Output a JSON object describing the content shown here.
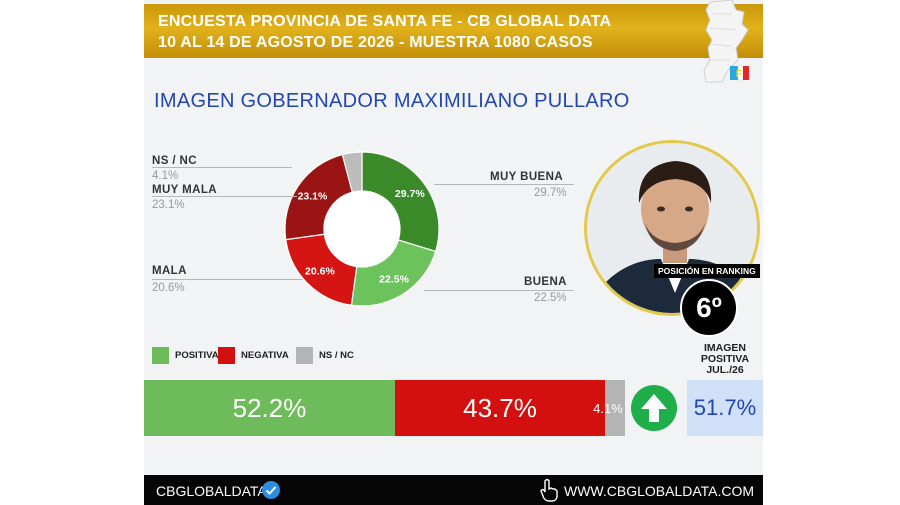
{
  "header": {
    "line1": "ENCUESTA PROVINCIA DE SANTA FE - CB GLOBAL DATA",
    "line2": "10 AL 14 DE AGOSTO DE 2026 - MUESTRA 1080 CASOS"
  },
  "map_icon": "santa-fe-map-icon",
  "title": "IMAGEN GOBERNADOR  MAXIMILIANO PULLARO",
  "chart_data": [
    {
      "type": "pie",
      "donut": true,
      "slices": [
        {
          "label": "MUY BUENA",
          "value": 29.7,
          "value_text": "29.7%",
          "color": "#3b8a2a"
        },
        {
          "label": "BUENA",
          "value": 22.5,
          "value_text": "22.5%",
          "color": "#6cc35c"
        },
        {
          "label": "MALA",
          "value": 20.6,
          "value_text": "20.6%",
          "color": "#d51414"
        },
        {
          "label": "MUY MALA",
          "value": 23.1,
          "value_text": "23.1%",
          "color": "#9a1414"
        },
        {
          "label": "NS / NC",
          "value": 4.1,
          "value_text": "4.1%",
          "color": "#bcbcbc"
        }
      ]
    },
    {
      "type": "bar",
      "stacked": true,
      "orientation": "horizontal",
      "legend": [
        {
          "label": "POSITIVA",
          "color": "#6dbb5a"
        },
        {
          "label": "NEGATIVA",
          "color": "#d40f0f"
        },
        {
          "label": "NS / NC",
          "color": "#b4b4b4"
        }
      ],
      "series": [
        {
          "name": "POSITIVA",
          "value": 52.2,
          "value_text": "52.2%"
        },
        {
          "name": "NEGATIVA",
          "value": 43.7,
          "value_text": "43.7%"
        },
        {
          "name": "NS / NC",
          "value": 4.1,
          "value_text": "4.1%"
        }
      ]
    }
  ],
  "ranking": {
    "label": "POSICIÓN EN RANKING",
    "value": "6º"
  },
  "previous": {
    "label_lines": [
      "IMAGEN",
      "POSITIVA",
      "JUL./26"
    ],
    "value": "51.7%",
    "trend_icon": "arrow-up-icon",
    "trend_color": "#1fae4a"
  },
  "footer": {
    "left": "CBGLOBALDATA",
    "right": "WWW.CBGLOBALDATA.COM",
    "verified_icon": "verified-badge-icon",
    "cursor_icon": "pointer-hand-icon"
  }
}
